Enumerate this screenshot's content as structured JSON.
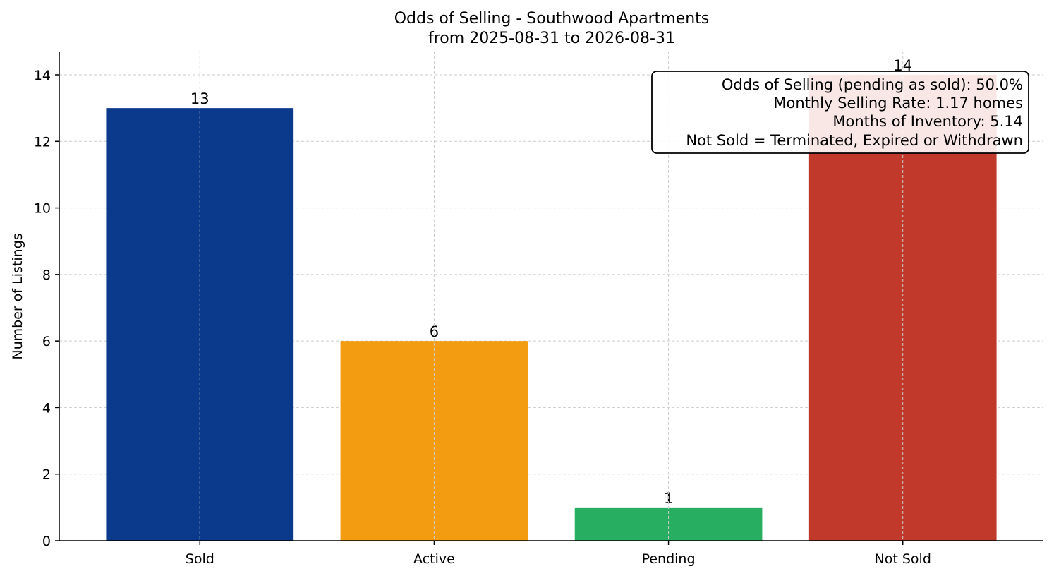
{
  "chart_data": {
    "type": "bar",
    "title": "Odds of Selling - Southwood Apartments",
    "subtitle": "from 2025-08-31 to 2026-08-31",
    "xlabel": "",
    "ylabel": "Number of Listings",
    "categories": [
      "Sold",
      "Active",
      "Pending",
      "Not Sold"
    ],
    "values": [
      13,
      6,
      1,
      14
    ],
    "colors": [
      "#0b3a8c",
      "#f39c12",
      "#27ae60",
      "#c0392b"
    ],
    "ylim": [
      0,
      14.7
    ],
    "yticks": [
      0,
      2,
      4,
      6,
      8,
      10,
      12,
      14
    ],
    "grid": true,
    "annotation_lines": [
      "Odds of Selling (pending as sold): 50.0%",
      "Monthly Selling Rate: 1.17 homes",
      "Months of Inventory: 5.14",
      "Not Sold = Terminated, Expired or Withdrawn"
    ],
    "annotation_placement": "top-right"
  }
}
